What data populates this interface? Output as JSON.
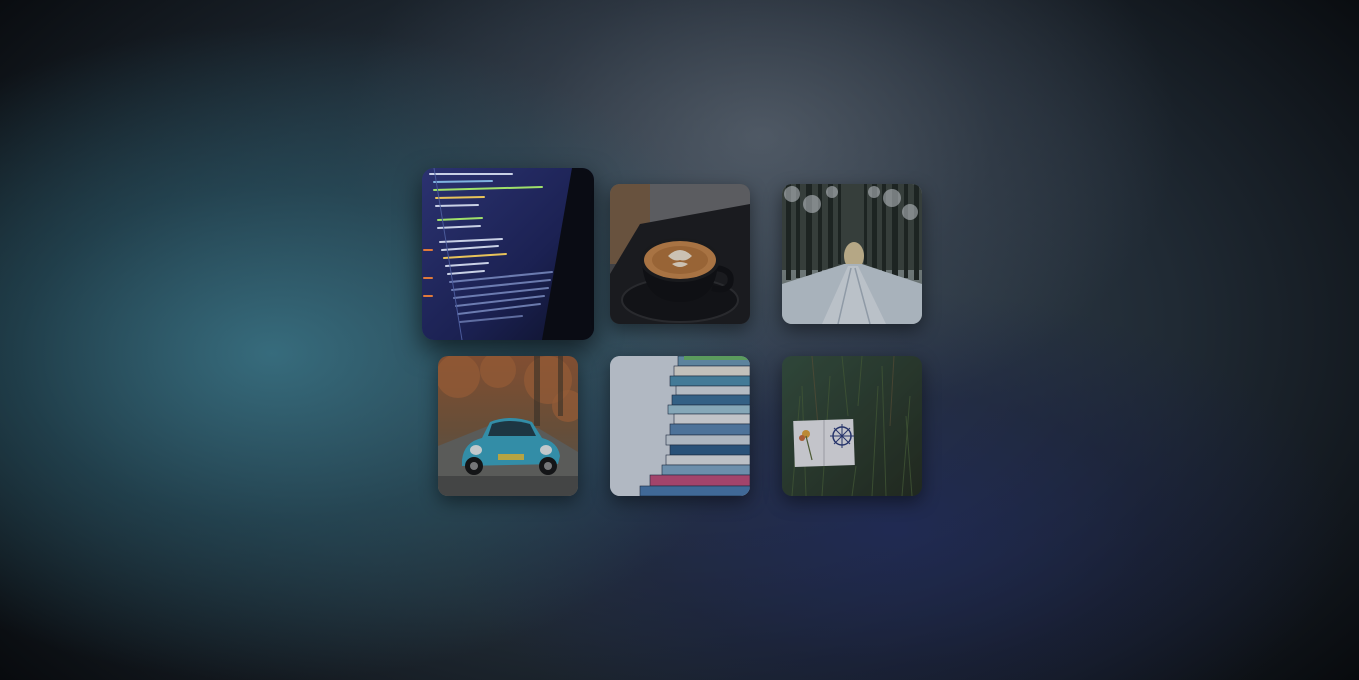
{
  "gallery": {
    "items": [
      {
        "id": "code",
        "icon": "code-on-monitor-photo",
        "state": "focused"
      },
      {
        "id": "coffee",
        "icon": "latte-cup-photo",
        "state": "normal"
      },
      {
        "id": "forest",
        "icon": "snowy-forest-road-photo",
        "state": "normal"
      },
      {
        "id": "car",
        "icon": "vintage-blue-car-photo",
        "state": "normal"
      },
      {
        "id": "books",
        "icon": "stacked-books-photo",
        "state": "normal"
      },
      {
        "id": "grass",
        "icon": "notebook-in-grass-photo",
        "state": "normal"
      }
    ]
  },
  "colors": {
    "code_bg": "#1d2350",
    "coffee_crema": "#c8874a",
    "forest_snow": "#c9d3dc",
    "car_body": "#3aa7c4",
    "books_bg": "#dfe4ec",
    "grass_green": "#2c3a28"
  }
}
